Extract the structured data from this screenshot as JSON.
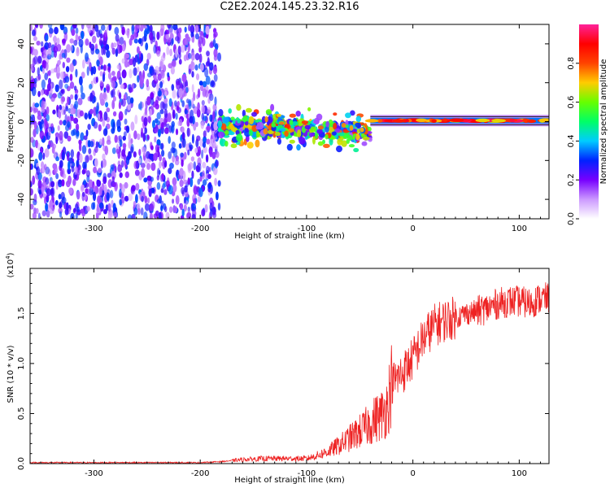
{
  "title": "C2E2.2024.145.23.32.R16",
  "colorbar": {
    "label": "Normalized spectral amplitude",
    "range": [
      0.0,
      1.0
    ],
    "tick_values": [
      0.0,
      0.2,
      0.4,
      0.6,
      0.8
    ],
    "tick_labels": [
      "0.0",
      "0.2",
      "0.4",
      "0.6",
      "0.8"
    ],
    "stops": [
      "#ffffff",
      "#cc99ff",
      "#7700ff",
      "#0022ff",
      "#00ccff",
      "#00ff66",
      "#66ff00",
      "#ffcc00",
      "#ff4400",
      "#ff0000",
      "#ff2299"
    ]
  },
  "chart_data": [
    {
      "type": "heatmap",
      "xlabel": "Height of straight line (km)",
      "ylabel": "Frequency (Hz)",
      "xlim": [
        -360,
        128
      ],
      "ylim": [
        -50,
        50
      ],
      "xticks": [
        -300,
        -200,
        -100,
        0,
        100
      ],
      "xtick_labels": [
        "-300",
        "-200",
        "-100",
        "0",
        "100"
      ],
      "yticks": [
        -40,
        -20,
        0,
        20,
        40
      ],
      "ytick_labels": [
        "-40",
        "-20",
        "0",
        "20",
        "40"
      ],
      "regions": [
        {
          "x": [
            -360,
            -182
          ],
          "y": [
            -50,
            50
          ],
          "level": 0.2,
          "pattern": "noise"
        },
        {
          "x": [
            -182,
            -40
          ],
          "y": [
            -10,
            6
          ],
          "level": 0.45,
          "pattern": "broad signal"
        },
        {
          "x": [
            -40,
            128
          ],
          "y": [
            -1,
            2
          ],
          "level": 0.95,
          "pattern": "narrow line"
        }
      ]
    },
    {
      "type": "line",
      "xlabel": "Height of straight line (km)",
      "ylabel": "SNR (10 * v/v)",
      "yscale_label": "(x10",
      "yscale_exp": "4",
      "yscale_suffix": ")",
      "xlim": [
        -360,
        128
      ],
      "ylim": [
        0,
        1.95
      ],
      "xticks": [
        -300,
        -200,
        -100,
        0,
        100
      ],
      "xtick_labels": [
        "-300",
        "-200",
        "-100",
        "0",
        "100"
      ],
      "yticks": [
        0,
        0.5,
        1.0,
        1.5
      ],
      "ytick_labels": [
        "0.0",
        "0.5",
        "1.0",
        "1.5"
      ],
      "color": "#ee2222",
      "series": [
        {
          "x": [
            -360,
            -300,
            -250,
            -200,
            -180,
            -160,
            -140,
            -120,
            -100,
            -90,
            -80,
            -70,
            -60,
            -50,
            -40,
            -35,
            -30,
            -25,
            -20,
            -10,
            0,
            10,
            20,
            30,
            40,
            50,
            60,
            70,
            80,
            90,
            100,
            110,
            120,
            128
          ],
          "values": [
            0.01,
            0.01,
            0.01,
            0.01,
            0.02,
            0.04,
            0.05,
            0.05,
            0.05,
            0.08,
            0.12,
            0.18,
            0.25,
            0.32,
            0.4,
            0.45,
            0.48,
            0.55,
            0.8,
            0.9,
            1.05,
            1.25,
            1.38,
            1.43,
            1.46,
            1.5,
            1.52,
            1.55,
            1.6,
            1.62,
            1.62,
            1.6,
            1.65,
            1.65
          ]
        }
      ]
    }
  ]
}
